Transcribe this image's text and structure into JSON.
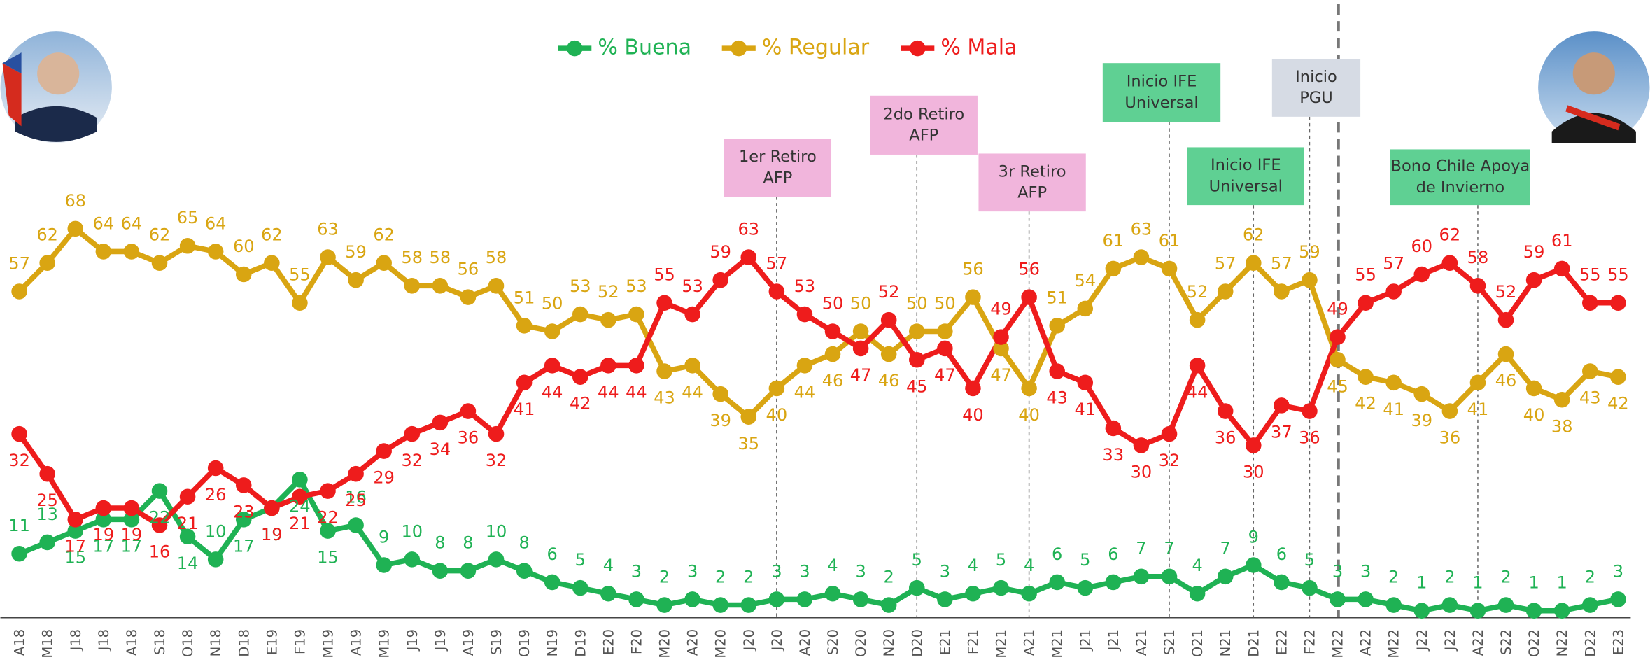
{
  "chart_data": {
    "type": "line",
    "categories": [
      "A18",
      "M18",
      "J18",
      "J18",
      "A18",
      "S18",
      "O18",
      "N18",
      "D18",
      "E19",
      "F19",
      "M19",
      "A19",
      "M19",
      "J19",
      "J19",
      "A19",
      "S19",
      "O19",
      "N19",
      "D19",
      "E20",
      "F20",
      "M20",
      "A20",
      "M20",
      "J20",
      "J20",
      "A20",
      "S20",
      "O20",
      "N20",
      "D20",
      "E21",
      "F21",
      "M21",
      "A21",
      "M21",
      "J21",
      "J21",
      "A21",
      "S21",
      "O21",
      "N21",
      "D21",
      "E22",
      "F22",
      "M22",
      "A22",
      "M22",
      "J22",
      "J22",
      "A22",
      "S22",
      "O22",
      "N22",
      "D22",
      "E23"
    ],
    "series": [
      {
        "name": "% Buena",
        "color": "#1fb254",
        "values": [
          11,
          13,
          15,
          17,
          17,
          22,
          14,
          10,
          17,
          19,
          24,
          15,
          16,
          9,
          10,
          8,
          8,
          10,
          8,
          6,
          5,
          4,
          3,
          2,
          3,
          2,
          2,
          3,
          3,
          4,
          3,
          2,
          5,
          3,
          4,
          5,
          4,
          6,
          5,
          6,
          7,
          7,
          4,
          7,
          9,
          6,
          5,
          3,
          3,
          2,
          1,
          2,
          1,
          2,
          1,
          1,
          2,
          3
        ]
      },
      {
        "name": "% Regular",
        "color": "#d9a512",
        "values": [
          57,
          62,
          68,
          64,
          64,
          62,
          65,
          64,
          60,
          62,
          55,
          63,
          59,
          62,
          58,
          58,
          56,
          58,
          51,
          50,
          53,
          52,
          53,
          43,
          44,
          39,
          35,
          40,
          44,
          46,
          50,
          46,
          50,
          50,
          56,
          47,
          40,
          51,
          54,
          61,
          63,
          61,
          52,
          57,
          62,
          57,
          59,
          45,
          42,
          41,
          39,
          36,
          41,
          46,
          40,
          38,
          43,
          42
        ]
      },
      {
        "name": "% Mala",
        "color": "#ee1c1c",
        "values": [
          32,
          25,
          17,
          19,
          19,
          16,
          21,
          26,
          23,
          19,
          21,
          22,
          25,
          29,
          32,
          34,
          36,
          32,
          41,
          44,
          42,
          44,
          44,
          55,
          53,
          59,
          63,
          57,
          53,
          50,
          47,
          52,
          45,
          47,
          40,
          49,
          56,
          43,
          41,
          33,
          30,
          32,
          44,
          36,
          30,
          37,
          36,
          49,
          55,
          57,
          60,
          62,
          58,
          52,
          59,
          61,
          55,
          55
        ]
      }
    ],
    "ylim": [
      0,
      70
    ],
    "annotations": [
      [
        "1er Retiro",
        "AFP"
      ],
      [
        "2do Retiro",
        "AFP"
      ],
      [
        "3r Retiro",
        "AFP"
      ],
      [
        "Inicio IFE",
        "Universal"
      ],
      [
        "Inicio IFE",
        "Universal"
      ],
      [
        "Inicio",
        "PGU"
      ],
      [
        "Bono Chile Apoya",
        "de Invierno"
      ]
    ]
  }
}
